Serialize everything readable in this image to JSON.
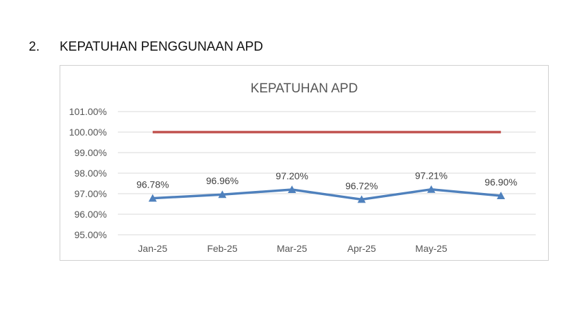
{
  "section": {
    "number": "2.",
    "title": "KEPATUHAN PENGGUNAAN APD"
  },
  "colors": {
    "series_line": "#4f81bd",
    "target_line": "#c0504d",
    "gridline": "#d9d9d9"
  },
  "chart_data": {
    "type": "line",
    "title": "KEPATUHAN APD",
    "categories": [
      "Jan-25",
      "Feb-25",
      "Mar-25",
      "Apr-25",
      "May-25",
      ""
    ],
    "series": [
      {
        "values": [
          96.78,
          96.96,
          97.2,
          96.72,
          97.21,
          96.9
        ],
        "data_labels": [
          "96.78%",
          "96.96%",
          "97.20%",
          "96.72%",
          "97.21%",
          "96.90%"
        ],
        "marker": "triangle"
      },
      {
        "values": [
          100,
          100,
          100,
          100,
          100,
          100
        ]
      }
    ],
    "y_ticks": [
      "95.00%",
      "96.00%",
      "97.00%",
      "98.00%",
      "99.00%",
      "100.00%",
      "101.00%"
    ],
    "ylim": [
      95,
      101
    ],
    "xlabel": "",
    "ylabel": "",
    "grid": true,
    "legend": "none"
  }
}
